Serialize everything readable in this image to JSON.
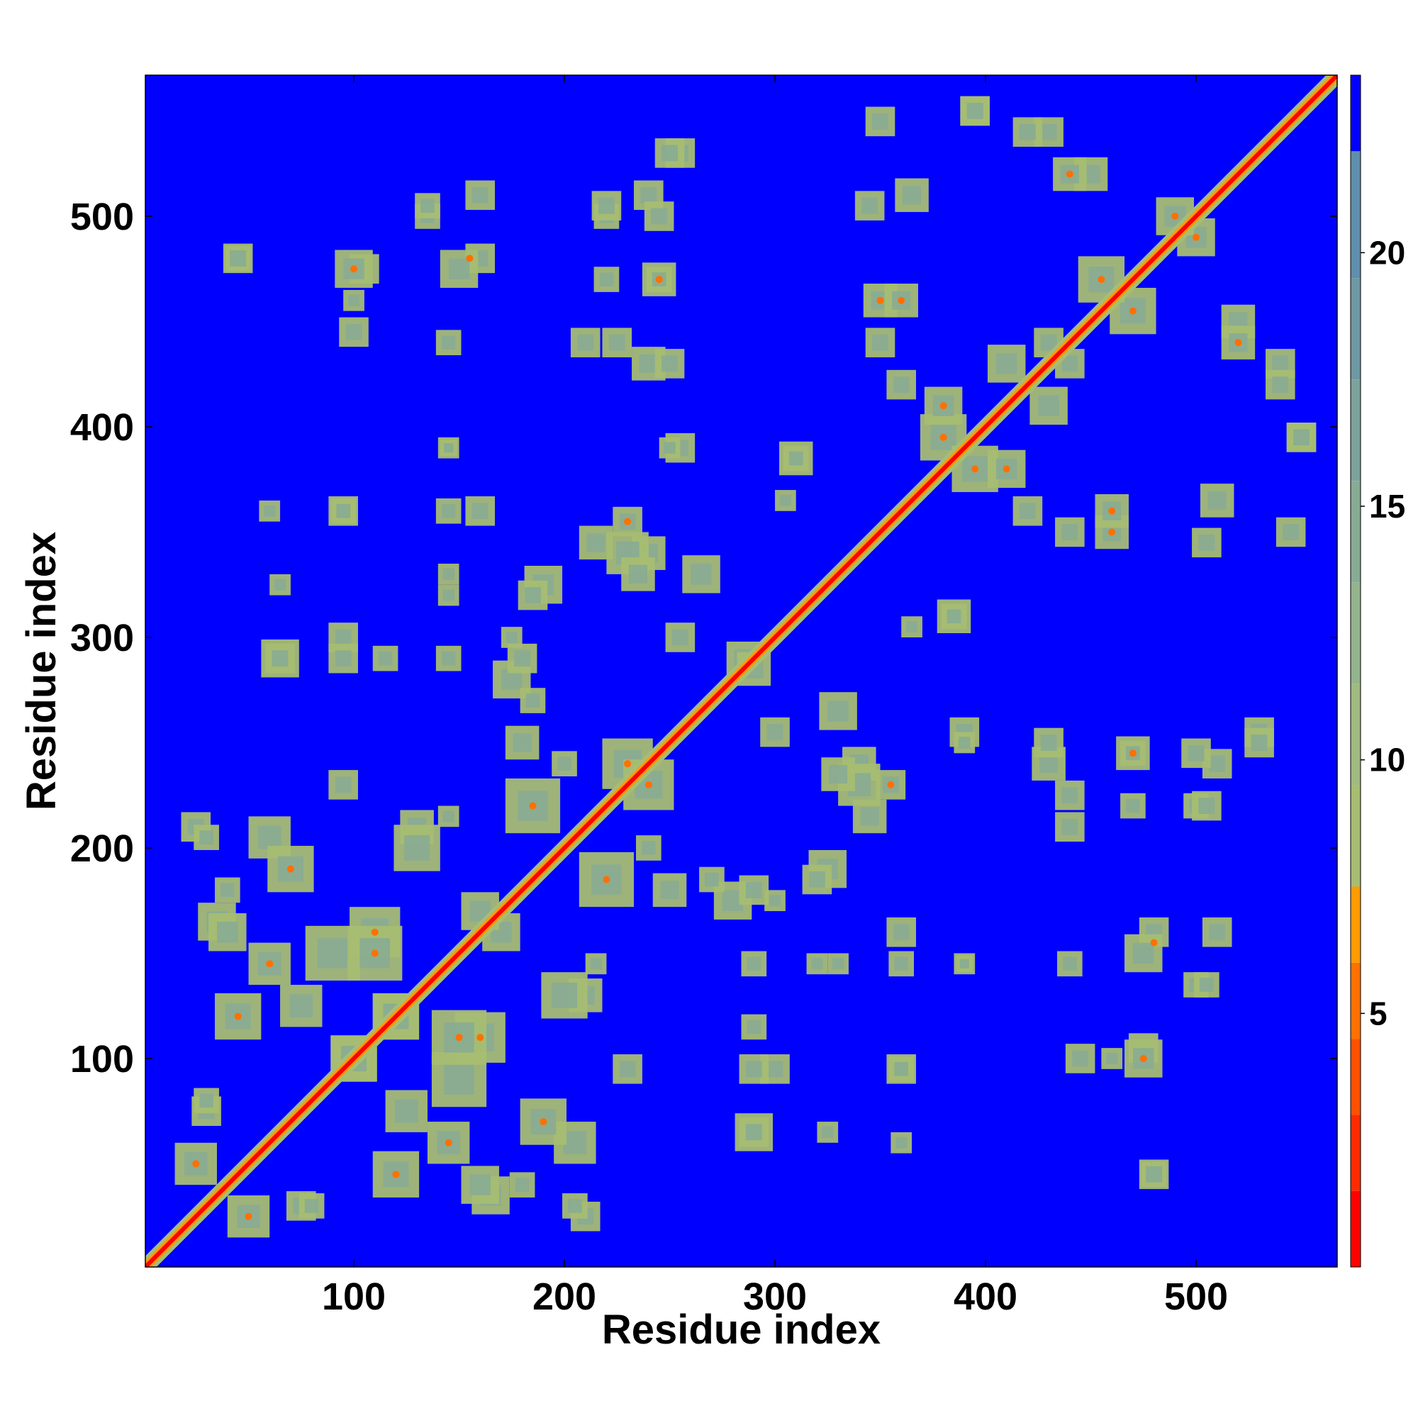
{
  "chart_data": {
    "type": "heatmap",
    "subtype": "residue contact / distance map",
    "xlabel": "Residue index",
    "ylabel": "Residue index",
    "xlim": [
      1,
      567
    ],
    "ylim": [
      1,
      567
    ],
    "x_ticks": [
      100,
      200,
      300,
      400,
      500
    ],
    "y_ticks": [
      100,
      200,
      300,
      400,
      500
    ],
    "colorbar": {
      "range": [
        0,
        23.5
      ],
      "ticks": [
        5,
        10,
        15,
        20
      ],
      "position": "right",
      "bands": [
        {
          "from": 0.0,
          "to": 1.5,
          "color": "#ff0000"
        },
        {
          "from": 1.5,
          "to": 3.0,
          "color": "#ff2a00"
        },
        {
          "from": 3.0,
          "to": 4.5,
          "color": "#ff5000"
        },
        {
          "from": 4.5,
          "to": 6.0,
          "color": "#ff7000"
        },
        {
          "from": 6.0,
          "to": 7.5,
          "color": "#ff9a00"
        },
        {
          "from": 7.5,
          "to": 9.5,
          "color": "#a7bd72"
        },
        {
          "from": 9.5,
          "to": 11.5,
          "color": "#9fbb80"
        },
        {
          "from": 11.5,
          "to": 13.5,
          "color": "#93b48c"
        },
        {
          "from": 13.5,
          "to": 15.5,
          "color": "#88ab94"
        },
        {
          "from": 15.5,
          "to": 17.5,
          "color": "#7da29c"
        },
        {
          "from": 17.5,
          "to": 19.5,
          "color": "#6e98a4"
        },
        {
          "from": 19.5,
          "to": 22.0,
          "color": "#5f8fac"
        },
        {
          "from": 22.0,
          "to": 23.5,
          "color": "#0000ff"
        }
      ]
    },
    "background_color": "#0000ff",
    "diagonal": {
      "from": 1,
      "to": 567,
      "inner_color": "#ff0000",
      "edge_color": "#ff9a00"
    },
    "contact_blocks": [
      [
        25,
        50,
        20,
        "#a7bd72"
      ],
      [
        30,
        75,
        14,
        "#a7bd72"
      ],
      [
        35,
        165,
        18,
        "#a7bd72"
      ],
      [
        45,
        120,
        22,
        "#a7bd72"
      ],
      [
        60,
        205,
        20,
        "#a7bd72"
      ],
      [
        80,
        30,
        12,
        "#a7bd72"
      ],
      [
        90,
        150,
        26,
        "#a7bd72"
      ],
      [
        100,
        100,
        22,
        "#a7bd72"
      ],
      [
        110,
        160,
        24,
        "#a7bd72"
      ],
      [
        120,
        120,
        22,
        "#a7bd72"
      ],
      [
        125,
        75,
        20,
        "#a7bd72"
      ],
      [
        130,
        210,
        16,
        "#a7bd72"
      ],
      [
        145,
        60,
        20,
        "#a7bd72"
      ],
      [
        150,
        110,
        26,
        "#a7bd72"
      ],
      [
        160,
        40,
        18,
        "#a7bd72"
      ],
      [
        170,
        160,
        18,
        "#a7bd72"
      ],
      [
        190,
        70,
        22,
        "#a7bd72"
      ],
      [
        200,
        130,
        22,
        "#a7bd72"
      ],
      [
        210,
        25,
        14,
        "#a7bd72"
      ],
      [
        220,
        185,
        26,
        "#a7bd72"
      ],
      [
        230,
        240,
        24,
        "#a7bd72"
      ],
      [
        190,
        325,
        18,
        "#a7bd72"
      ],
      [
        215,
        345,
        16,
        "#a7bd72"
      ],
      [
        240,
        340,
        16,
        "#a7bd72"
      ],
      [
        175,
        280,
        18,
        "#a7bd72"
      ],
      [
        65,
        290,
        18,
        "#a7bd72"
      ],
      [
        95,
        300,
        14,
        "#a7bd72"
      ],
      [
        95,
        360,
        14,
        "#a7bd72"
      ],
      [
        160,
        360,
        14,
        "#a7bd72"
      ],
      [
        145,
        320,
        10,
        "#a7bd72"
      ],
      [
        145,
        390,
        10,
        "#a7bd72"
      ],
      [
        255,
        390,
        14,
        "#a7bd72"
      ],
      [
        310,
        385,
        16,
        "#a7bd72"
      ],
      [
        330,
        265,
        18,
        "#a7bd72"
      ],
      [
        285,
        290,
        16,
        "#a7bd72"
      ],
      [
        300,
        255,
        14,
        "#a7bd72"
      ],
      [
        340,
        230,
        20,
        "#a7bd72"
      ],
      [
        250,
        180,
        16,
        "#a7bd72"
      ],
      [
        290,
        180,
        14,
        "#a7bd72"
      ],
      [
        240,
        200,
        12,
        "#a7bd72"
      ],
      [
        210,
        440,
        14,
        "#a7bd72"
      ],
      [
        220,
        500,
        12,
        "#a7bd72"
      ],
      [
        240,
        430,
        16,
        "#a7bd72"
      ],
      [
        245,
        470,
        16,
        "#a7bd72"
      ],
      [
        240,
        510,
        14,
        "#a7bd72"
      ],
      [
        160,
        480,
        14,
        "#a7bd72"
      ],
      [
        135,
        500,
        12,
        "#a7bd72"
      ],
      [
        105,
        475,
        14,
        "#a7bd72"
      ],
      [
        45,
        480,
        12,
        "#a7bd72"
      ],
      [
        100,
        460,
        10,
        "#a7bd72"
      ],
      [
        255,
        530,
        14,
        "#a7bd72"
      ],
      [
        365,
        510,
        16,
        "#a7bd72"
      ],
      [
        350,
        460,
        16,
        "#a7bd72"
      ],
      [
        360,
        420,
        14,
        "#a7bd72"
      ],
      [
        380,
        395,
        22,
        "#a7bd72"
      ],
      [
        395,
        550,
        14,
        "#a7bd72"
      ],
      [
        430,
        540,
        14,
        "#a7bd72"
      ],
      [
        450,
        520,
        16,
        "#a7bd72"
      ],
      [
        470,
        455,
        22,
        "#a7bd72"
      ],
      [
        500,
        490,
        18,
        "#a7bd72"
      ],
      [
        520,
        440,
        16,
        "#a7bd72"
      ],
      [
        540,
        420,
        14,
        "#a7bd72"
      ],
      [
        550,
        395,
        14,
        "#a7bd72"
      ],
      [
        545,
        350,
        14,
        "#a7bd72"
      ],
      [
        505,
        345,
        14,
        "#a7bd72"
      ],
      [
        460,
        360,
        16,
        "#a7bd72"
      ],
      [
        440,
        350,
        14,
        "#a7bd72"
      ],
      [
        410,
        380,
        18,
        "#a7bd72"
      ],
      [
        430,
        410,
        18,
        "#a7bd72"
      ],
      [
        440,
        430,
        14,
        "#a7bd72"
      ],
      [
        385,
        310,
        12,
        "#a7bd72"
      ],
      [
        365,
        305,
        10,
        "#a7bd72"
      ],
      [
        530,
        250,
        14,
        "#a7bd72"
      ],
      [
        500,
        245,
        14,
        "#a7bd72"
      ],
      [
        470,
        245,
        12,
        "#a7bd72"
      ],
      [
        430,
        250,
        14,
        "#a7bd72"
      ],
      [
        440,
        225,
        14,
        "#a7bd72"
      ],
      [
        470,
        220,
        12,
        "#a7bd72"
      ],
      [
        505,
        220,
        14,
        "#a7bd72"
      ],
      [
        390,
        250,
        10,
        "#a7bd72"
      ],
      [
        330,
        235,
        16,
        "#a7bd72"
      ],
      [
        355,
        230,
        14,
        "#a7bd72"
      ],
      [
        320,
        185,
        14,
        "#a7bd72"
      ],
      [
        330,
        145,
        10,
        "#a7bd72"
      ],
      [
        360,
        145,
        12,
        "#a7bd72"
      ],
      [
        360,
        95,
        12,
        "#a7bd72"
      ],
      [
        325,
        65,
        10,
        "#a7bd72"
      ],
      [
        290,
        65,
        14,
        "#a7bd72"
      ],
      [
        290,
        95,
        14,
        "#a7bd72"
      ],
      [
        290,
        115,
        12,
        "#a7bd72"
      ],
      [
        290,
        145,
        12,
        "#a7bd72"
      ],
      [
        230,
        95,
        14,
        "#a7bd72"
      ],
      [
        215,
        145,
        10,
        "#a7bd72"
      ],
      [
        475,
        150,
        18,
        "#a7bd72"
      ],
      [
        510,
        160,
        14,
        "#a7bd72"
      ],
      [
        505,
        135,
        12,
        "#a7bd72"
      ],
      [
        475,
        100,
        18,
        "#a7bd72"
      ],
      [
        445,
        100,
        14,
        "#a7bd72"
      ],
      [
        440,
        145,
        12,
        "#a7bd72"
      ],
      [
        480,
        45,
        14,
        "#a7bd72"
      ],
      [
        390,
        145,
        8,
        "#a7bd72"
      ],
      [
        360,
        60,
        10,
        "#a7bd72"
      ],
      [
        205,
        30,
        12,
        "#a7bd72"
      ],
      [
        180,
        40,
        12,
        "#a7bd72"
      ],
      [
        270,
        185,
        12,
        "#a7bd72"
      ],
      [
        300,
        175,
        10,
        "#a7bd72"
      ]
    ],
    "contact_hotspots": [
      [
        25,
        50
      ],
      [
        45,
        120
      ],
      [
        100,
        100
      ],
      [
        110,
        160
      ],
      [
        145,
        60
      ],
      [
        150,
        110
      ],
      [
        220,
        185
      ],
      [
        230,
        240
      ],
      [
        380,
        395
      ],
      [
        410,
        380
      ],
      [
        470,
        455
      ],
      [
        500,
        490
      ],
      [
        520,
        440
      ],
      [
        460,
        360
      ],
      [
        355,
        230
      ],
      [
        190,
        70
      ],
      [
        480,
        155
      ],
      [
        475,
        100
      ],
      [
        245,
        470
      ],
      [
        350,
        460
      ]
    ]
  }
}
